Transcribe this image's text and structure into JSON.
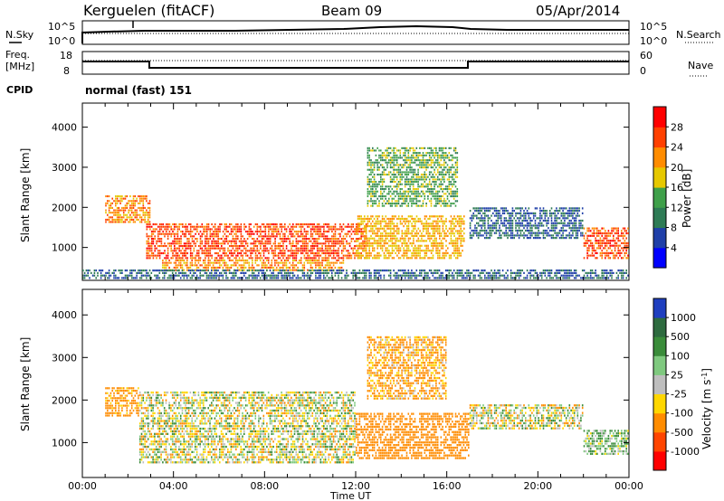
{
  "header": {
    "station": "Kerguelen (fitACF)",
    "beam": "Beam 09",
    "date": "05/Apr/2014"
  },
  "noise_panel": {
    "left_label": "N.Sky",
    "right_label": "N.Search",
    "left_ticks": [
      "10^5",
      "10^0"
    ],
    "right_ticks": [
      "10^5",
      "10^0"
    ]
  },
  "freq_panel": {
    "left_label_1": "Freq.",
    "left_label_2": "[MHz]",
    "right_label": "Nave",
    "left_ticks": [
      "18",
      "8"
    ],
    "right_ticks": [
      "60",
      "0"
    ]
  },
  "cpid": {
    "label": "CPID",
    "value": "normal (fast) 151"
  },
  "colors": {
    "power_scale": [
      "#0000ff",
      "#1f3fa8",
      "#2e7b55",
      "#3fa04a",
      "#e6c800",
      "#ff8c00",
      "#ff4000",
      "#ff0000"
    ],
    "velocity_scale": [
      "#1f3fbf",
      "#2e6b3f",
      "#3a8c3a",
      "#7fc97f",
      "#bebebe",
      "#ffd700",
      "#ff8c00",
      "#ff4500",
      "#ff0000"
    ]
  },
  "chart_data": [
    {
      "type": "heatmap",
      "panel": "power",
      "ylabel": "Slant Range [km]",
      "ylim": [
        180,
        4600
      ],
      "yticks": [
        "1000",
        "2000",
        "3000",
        "4000"
      ],
      "xticks": [
        "00:00",
        "04:00",
        "08:00",
        "12:00",
        "16:00",
        "20:00",
        "00:00"
      ],
      "colorbar_label": "Power [dB]",
      "colorbar_ticks": [
        "4",
        "8",
        "12",
        "16",
        "20",
        "24",
        "28"
      ],
      "regions": [
        {
          "t0": 2.8,
          "t1": 12.5,
          "r0": 700,
          "r1": 1600,
          "value": 26
        },
        {
          "t0": 3.5,
          "t1": 11.5,
          "r0": 400,
          "r1": 700,
          "value": 22
        },
        {
          "t0": 12.0,
          "t1": 16.8,
          "r0": 700,
          "r1": 1800,
          "value": 20
        },
        {
          "t0": 12.5,
          "t1": 16.5,
          "r0": 2000,
          "r1": 3500,
          "value": 14
        },
        {
          "t0": 1.0,
          "t1": 3.0,
          "r0": 1600,
          "r1": 2300,
          "value": 22
        },
        {
          "t0": 17.0,
          "t1": 22.0,
          "r0": 1200,
          "r1": 2000,
          "value": 8
        },
        {
          "t0": 22.0,
          "t1": 24.0,
          "r0": 700,
          "r1": 1500,
          "value": 26
        },
        {
          "t0": 0.0,
          "t1": 24.0,
          "r0": 200,
          "r1": 450,
          "value": 8
        }
      ]
    },
    {
      "type": "heatmap",
      "panel": "velocity",
      "ylabel": "Slant Range [km]",
      "ylim": [
        180,
        4600
      ],
      "yticks": [
        "1000",
        "2000",
        "3000",
        "4000"
      ],
      "xticks": [
        "00:00",
        "04:00",
        "08:00",
        "12:00",
        "16:00",
        "20:00",
        "00:00"
      ],
      "xlabel": "Time UT",
      "colorbar_label": "Velocity [m s",
      "colorbar_label_sup": "-1",
      "colorbar_ticks": [
        "1000",
        "500",
        "100",
        "25",
        "-25",
        "-100",
        "-500",
        "-1000"
      ],
      "regions": [
        {
          "t0": 2.5,
          "t1": 12.0,
          "r0": 500,
          "r1": 2200,
          "value": 0
        },
        {
          "t0": 12.0,
          "t1": 17.0,
          "r0": 600,
          "r1": 1700,
          "value": -300
        },
        {
          "t0": 12.5,
          "t1": 16.0,
          "r0": 2000,
          "r1": 3500,
          "value": -150
        },
        {
          "t0": 17.0,
          "t1": 22.0,
          "r0": 1300,
          "r1": 1900,
          "value": 0
        },
        {
          "t0": 22.0,
          "t1": 24.0,
          "r0": 700,
          "r1": 1300,
          "value": 100
        },
        {
          "t0": 1.0,
          "t1": 2.5,
          "r0": 1600,
          "r1": 2300,
          "value": -200
        }
      ]
    }
  ]
}
